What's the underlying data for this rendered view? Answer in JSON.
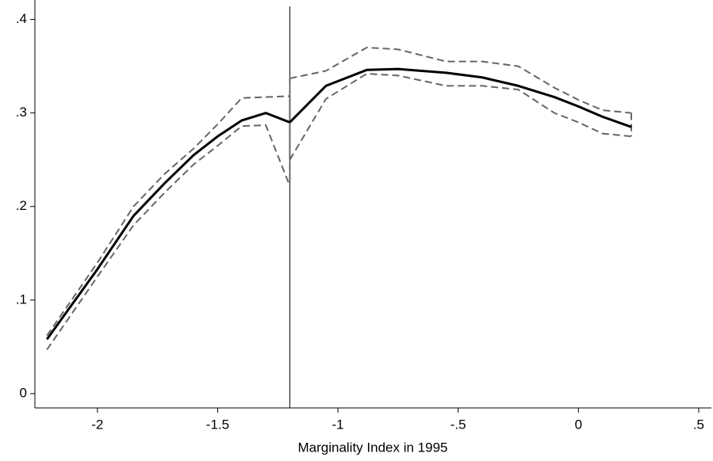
{
  "chart_data": {
    "type": "line",
    "x_label": "Marginality Index in 1995",
    "xlim": [
      -2.26,
      0.553
    ],
    "ylim": [
      -0.0153,
      0.414
    ],
    "xticks": [
      -2,
      -1.5,
      -1,
      {
        "value": -0.5,
        "label": "-.5"
      },
      0,
      {
        "value": 0.5,
        "label": ".5"
      }
    ],
    "yticks": [
      0,
      {
        "value": 0.1,
        "label": ".1"
      },
      {
        "value": 0.2,
        "label": ".2"
      },
      {
        "value": 0.3,
        "label": ".3"
      },
      {
        "value": 0.4,
        "label": ".4"
      }
    ],
    "cutoff": -1.2,
    "segments": [
      {
        "x": [
          -2.21,
          -2.0,
          -1.85,
          -1.72,
          -1.6,
          -1.5,
          -1.4,
          -1.3,
          -1.2
        ],
        "fit": [
          0.058,
          0.133,
          0.19,
          0.225,
          0.255,
          0.275,
          0.292,
          0.3,
          0.29
        ],
        "upper": [
          0.062,
          0.14,
          0.2,
          0.235,
          0.262,
          0.288,
          0.316,
          0.317,
          0.318
        ],
        "lower": [
          0.047,
          0.125,
          0.18,
          0.215,
          0.245,
          0.265,
          0.286,
          0.287,
          0.222
        ]
      },
      {
        "x": [
          -1.2,
          -1.05,
          -0.88,
          -0.75,
          -0.55,
          -0.4,
          -0.25,
          -0.1,
          0.0,
          0.1,
          0.22
        ],
        "fit": [
          0.29,
          0.329,
          0.346,
          0.347,
          0.343,
          0.338,
          0.329,
          0.317,
          0.307,
          0.296,
          0.285
        ],
        "upper": [
          0.337,
          0.345,
          0.37,
          0.368,
          0.355,
          0.355,
          0.35,
          0.327,
          0.314,
          0.303,
          0.3
        ],
        "lower": [
          0.25,
          0.315,
          0.342,
          0.34,
          0.329,
          0.329,
          0.325,
          0.3,
          0.29,
          0.278,
          0.275
        ]
      }
    ]
  }
}
